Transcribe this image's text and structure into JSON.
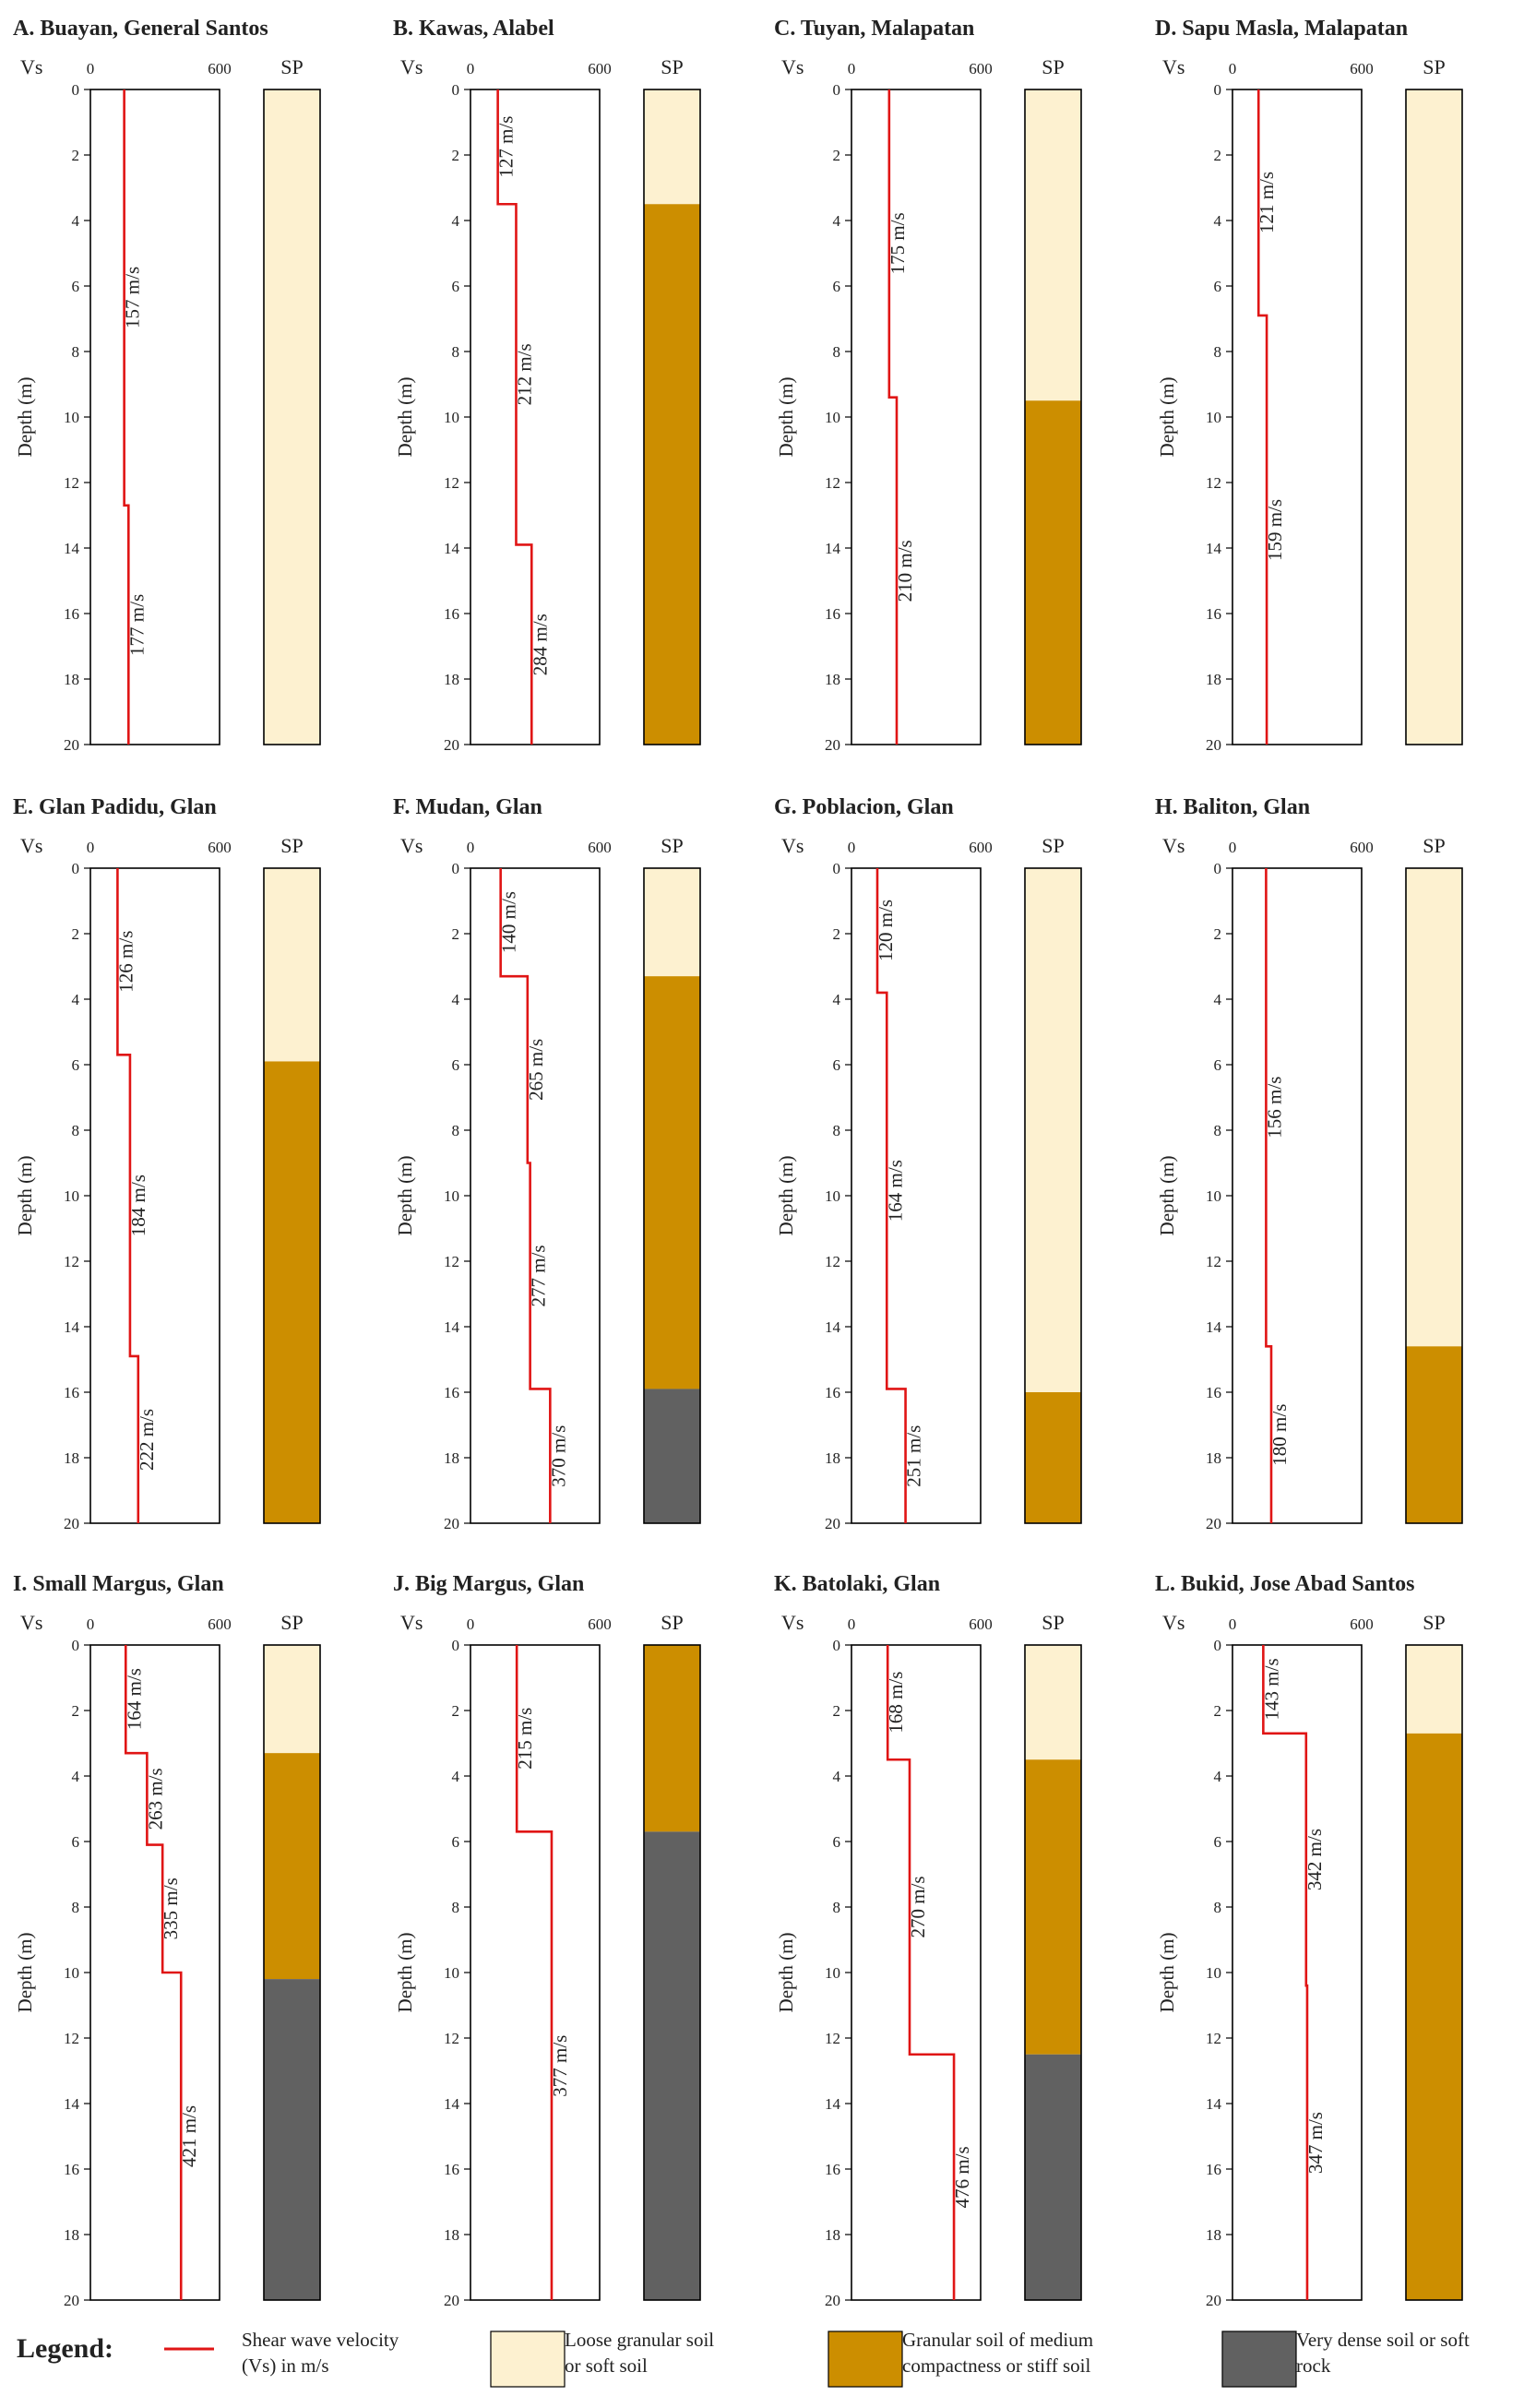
{
  "legend": {
    "title": "Legend:",
    "items": [
      {
        "key": "vs",
        "lines": [
          "Shear wave velocity",
          "(Vs) in m/s"
        ],
        "color": "#e01515"
      },
      {
        "key": "loose",
        "lines": [
          "Loose granular soil",
          "or soft soil"
        ],
        "color": "#fdf1d0"
      },
      {
        "key": "medium",
        "lines": [
          "Granular soil of medium",
          "compactness or stiff soil"
        ],
        "color": "#cc8e00"
      },
      {
        "key": "dense",
        "lines": [
          "Very dense soil or soft",
          "rock"
        ],
        "color": "#616161"
      }
    ]
  },
  "chart_data": [
    {
      "type": "line",
      "title": "A. Buayan, General Santos",
      "vs_label": "Vs",
      "sp_label": "SP",
      "ylabel": "Depth (m)",
      "xlim": [
        0,
        600
      ],
      "xticks": [
        0,
        600
      ],
      "ylim": [
        0,
        20
      ],
      "yticks": [
        0,
        2,
        4,
        6,
        8,
        10,
        12,
        14,
        16,
        18,
        20
      ],
      "layers": [
        {
          "top": 0,
          "bottom": 12.7,
          "vs": 157,
          "label": "157 m/s"
        },
        {
          "top": 12.7,
          "bottom": 20,
          "vs": 177,
          "label": "177 m/s"
        }
      ],
      "soil": [
        {
          "top": 0,
          "bottom": 20,
          "class": "loose"
        }
      ]
    },
    {
      "type": "line",
      "title": "B. Kawas, Alabel",
      "vs_label": "Vs",
      "sp_label": "SP",
      "ylabel": "Depth (m)",
      "xlim": [
        0,
        600
      ],
      "xticks": [
        0,
        600
      ],
      "ylim": [
        0,
        20
      ],
      "yticks": [
        0,
        2,
        4,
        6,
        8,
        10,
        12,
        14,
        16,
        18,
        20
      ],
      "layers": [
        {
          "top": 0,
          "bottom": 3.5,
          "vs": 127,
          "label": "127 m/s"
        },
        {
          "top": 3.5,
          "bottom": 13.9,
          "vs": 212,
          "label": "212 m/s"
        },
        {
          "top": 13.9,
          "bottom": 20,
          "vs": 284,
          "label": "284 m/s"
        }
      ],
      "soil": [
        {
          "top": 0,
          "bottom": 3.5,
          "class": "loose"
        },
        {
          "top": 3.5,
          "bottom": 20,
          "class": "medium"
        }
      ]
    },
    {
      "type": "line",
      "title": "C. Tuyan, Malapatan",
      "vs_label": "Vs",
      "sp_label": "SP",
      "ylabel": "Depth (m)",
      "xlim": [
        0,
        600
      ],
      "xticks": [
        0,
        600
      ],
      "ylim": [
        0,
        20
      ],
      "yticks": [
        0,
        2,
        4,
        6,
        8,
        10,
        12,
        14,
        16,
        18,
        20
      ],
      "layers": [
        {
          "top": 0,
          "bottom": 9.4,
          "vs": 175,
          "label": "175 m/s"
        },
        {
          "top": 9.4,
          "bottom": 20,
          "vs": 210,
          "label": "210 m/s"
        }
      ],
      "soil": [
        {
          "top": 0,
          "bottom": 9.5,
          "class": "loose"
        },
        {
          "top": 9.5,
          "bottom": 20,
          "class": "medium"
        }
      ]
    },
    {
      "type": "line",
      "title": "D. Sapu Masla, Malapatan",
      "vs_label": "Vs",
      "sp_label": "SP",
      "ylabel": "Depth (m)",
      "xlim": [
        0,
        600
      ],
      "xticks": [
        0,
        600
      ],
      "ylim": [
        0,
        20
      ],
      "yticks": [
        0,
        2,
        4,
        6,
        8,
        10,
        12,
        14,
        16,
        18,
        20
      ],
      "layers": [
        {
          "top": 0,
          "bottom": 6.9,
          "vs": 121,
          "label": "121 m/s"
        },
        {
          "top": 6.9,
          "bottom": 20,
          "vs": 159,
          "label": "159 m/s"
        }
      ],
      "soil": [
        {
          "top": 0,
          "bottom": 20,
          "class": "loose"
        }
      ]
    },
    {
      "type": "line",
      "title": "E. Glan Padidu, Glan",
      "vs_label": "Vs",
      "sp_label": "SP",
      "ylabel": "Depth (m)",
      "xlim": [
        0,
        600
      ],
      "xticks": [
        0,
        600
      ],
      "ylim": [
        0,
        20
      ],
      "yticks": [
        0,
        2,
        4,
        6,
        8,
        10,
        12,
        14,
        16,
        18,
        20
      ],
      "layers": [
        {
          "top": 0,
          "bottom": 5.7,
          "vs": 126,
          "label": "126 m/s"
        },
        {
          "top": 5.7,
          "bottom": 14.9,
          "vs": 184,
          "label": "184 m/s"
        },
        {
          "top": 14.9,
          "bottom": 20,
          "vs": 222,
          "label": "222 m/s"
        }
      ],
      "soil": [
        {
          "top": 0,
          "bottom": 5.9,
          "class": "loose"
        },
        {
          "top": 5.9,
          "bottom": 20,
          "class": "medium"
        }
      ]
    },
    {
      "type": "line",
      "title": "F. Mudan, Glan",
      "vs_label": "Vs",
      "sp_label": "SP",
      "ylabel": "Depth (m)",
      "xlim": [
        0,
        600
      ],
      "xticks": [
        0,
        600
      ],
      "ylim": [
        0,
        20
      ],
      "yticks": [
        0,
        2,
        4,
        6,
        8,
        10,
        12,
        14,
        16,
        18,
        20
      ],
      "layers": [
        {
          "top": 0,
          "bottom": 3.3,
          "vs": 140,
          "label": "140 m/s"
        },
        {
          "top": 3.3,
          "bottom": 9.0,
          "vs": 265,
          "label": "265 m/s"
        },
        {
          "top": 9.0,
          "bottom": 15.9,
          "vs": 277,
          "label": "277 m/s"
        },
        {
          "top": 15.9,
          "bottom": 20,
          "vs": 370,
          "label": "370 m/s"
        }
      ],
      "soil": [
        {
          "top": 0,
          "bottom": 3.3,
          "class": "loose"
        },
        {
          "top": 3.3,
          "bottom": 15.9,
          "class": "medium"
        },
        {
          "top": 15.9,
          "bottom": 20,
          "class": "dense"
        }
      ]
    },
    {
      "type": "line",
      "title": "G. Poblacion, Glan",
      "vs_label": "Vs",
      "sp_label": "SP",
      "ylabel": "Depth (m)",
      "xlim": [
        0,
        600
      ],
      "xticks": [
        0,
        600
      ],
      "ylim": [
        0,
        20
      ],
      "yticks": [
        0,
        2,
        4,
        6,
        8,
        10,
        12,
        14,
        16,
        18,
        20
      ],
      "layers": [
        {
          "top": 0,
          "bottom": 3.8,
          "vs": 120,
          "label": "120 m/s"
        },
        {
          "top": 3.8,
          "bottom": 15.9,
          "vs": 164,
          "label": "164 m/s"
        },
        {
          "top": 15.9,
          "bottom": 20,
          "vs": 251,
          "label": "251 m/s"
        }
      ],
      "soil": [
        {
          "top": 0,
          "bottom": 16.0,
          "class": "loose"
        },
        {
          "top": 16.0,
          "bottom": 20,
          "class": "medium"
        }
      ]
    },
    {
      "type": "line",
      "title": "H. Baliton, Glan",
      "vs_label": "Vs",
      "sp_label": "SP",
      "ylabel": "Depth (m)",
      "xlim": [
        0,
        600
      ],
      "xticks": [
        0,
        600
      ],
      "ylim": [
        0,
        20
      ],
      "yticks": [
        0,
        2,
        4,
        6,
        8,
        10,
        12,
        14,
        16,
        18,
        20
      ],
      "layers": [
        {
          "top": 0,
          "bottom": 14.6,
          "vs": 156,
          "label": "156 m/s"
        },
        {
          "top": 14.6,
          "bottom": 20,
          "vs": 180,
          "label": "180 m/s"
        }
      ],
      "soil": [
        {
          "top": 0,
          "bottom": 14.6,
          "class": "loose"
        },
        {
          "top": 14.6,
          "bottom": 20,
          "class": "medium"
        }
      ]
    },
    {
      "type": "line",
      "title": "I. Small Margus, Glan",
      "vs_label": "Vs",
      "sp_label": "SP",
      "ylabel": "Depth (m)",
      "xlim": [
        0,
        600
      ],
      "xticks": [
        0,
        600
      ],
      "ylim": [
        0,
        20
      ],
      "yticks": [
        0,
        2,
        4,
        6,
        8,
        10,
        12,
        14,
        16,
        18,
        20
      ],
      "layers": [
        {
          "top": 0,
          "bottom": 3.3,
          "vs": 164,
          "label": "164 m/s"
        },
        {
          "top": 3.3,
          "bottom": 6.1,
          "vs": 263,
          "label": "263 m/s"
        },
        {
          "top": 6.1,
          "bottom": 10.0,
          "vs": 335,
          "label": "335 m/s"
        },
        {
          "top": 10.0,
          "bottom": 20,
          "vs": 421,
          "label": "421 m/s"
        }
      ],
      "soil": [
        {
          "top": 0,
          "bottom": 3.3,
          "class": "loose"
        },
        {
          "top": 3.3,
          "bottom": 10.2,
          "class": "medium"
        },
        {
          "top": 10.2,
          "bottom": 20,
          "class": "dense"
        }
      ]
    },
    {
      "type": "line",
      "title": "J. Big Margus, Glan",
      "vs_label": "Vs",
      "sp_label": "SP",
      "ylabel": "Depth (m)",
      "xlim": [
        0,
        600
      ],
      "xticks": [
        0,
        600
      ],
      "ylim": [
        0,
        20
      ],
      "yticks": [
        0,
        2,
        4,
        6,
        8,
        10,
        12,
        14,
        16,
        18,
        20
      ],
      "layers": [
        {
          "top": 0,
          "bottom": 5.7,
          "vs": 215,
          "label": "215 m/s"
        },
        {
          "top": 5.7,
          "bottom": 20,
          "vs": 377,
          "label": "377 m/s"
        }
      ],
      "soil": [
        {
          "top": 0,
          "bottom": 5.7,
          "class": "medium"
        },
        {
          "top": 5.7,
          "bottom": 20,
          "class": "dense"
        }
      ]
    },
    {
      "type": "line",
      "title": "K. Batolaki, Glan",
      "vs_label": "Vs",
      "sp_label": "SP",
      "ylabel": "Depth (m)",
      "xlim": [
        0,
        600
      ],
      "xticks": [
        0,
        600
      ],
      "ylim": [
        0,
        20
      ],
      "yticks": [
        0,
        2,
        4,
        6,
        8,
        10,
        12,
        14,
        16,
        18,
        20
      ],
      "layers": [
        {
          "top": 0,
          "bottom": 3.5,
          "vs": 168,
          "label": "168 m/s"
        },
        {
          "top": 3.5,
          "bottom": 12.5,
          "vs": 270,
          "label": "270 m/s"
        },
        {
          "top": 12.5,
          "bottom": 20,
          "vs": 476,
          "label": "476 m/s"
        }
      ],
      "soil": [
        {
          "top": 0,
          "bottom": 3.5,
          "class": "loose"
        },
        {
          "top": 3.5,
          "bottom": 12.5,
          "class": "medium"
        },
        {
          "top": 12.5,
          "bottom": 20,
          "class": "dense"
        }
      ]
    },
    {
      "type": "line",
      "title": "L. Bukid, Jose Abad Santos",
      "vs_label": "Vs",
      "sp_label": "SP",
      "ylabel": "Depth (m)",
      "xlim": [
        0,
        600
      ],
      "xticks": [
        0,
        600
      ],
      "ylim": [
        0,
        20
      ],
      "yticks": [
        0,
        2,
        4,
        6,
        8,
        10,
        12,
        14,
        16,
        18,
        20
      ],
      "layers": [
        {
          "top": 0,
          "bottom": 2.7,
          "vs": 143,
          "label": "143 m/s"
        },
        {
          "top": 2.7,
          "bottom": 10.4,
          "vs": 342,
          "label": "342 m/s"
        },
        {
          "top": 10.4,
          "bottom": 20,
          "vs": 347,
          "label": "347 m/s"
        }
      ],
      "soil": [
        {
          "top": 0,
          "bottom": 2.7,
          "class": "loose"
        },
        {
          "top": 2.7,
          "bottom": 20,
          "class": "medium"
        }
      ]
    }
  ]
}
